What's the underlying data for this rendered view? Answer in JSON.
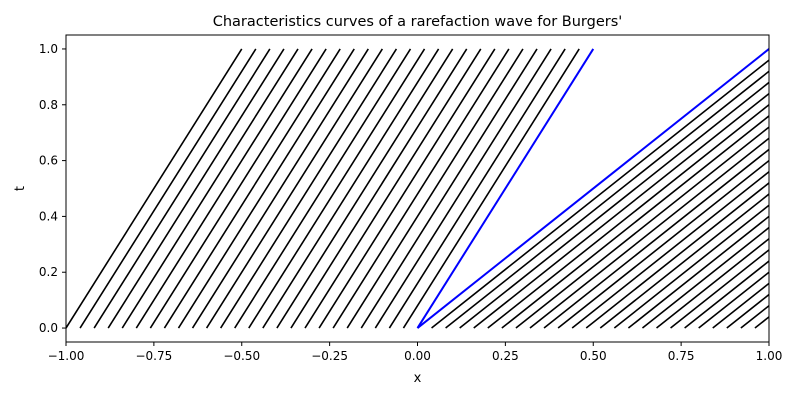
{
  "chart_data": {
    "type": "line",
    "title": "Characteristics curves of a rarefaction wave for Burgers'",
    "xlabel": "x",
    "ylabel": "t",
    "xlim": [
      -1.0,
      1.0
    ],
    "ylim": [
      -0.05,
      1.05
    ],
    "grid": false,
    "x_ticks": [
      -1.0,
      -0.75,
      -0.5,
      -0.25,
      0.0,
      0.25,
      0.5,
      0.75,
      1.0
    ],
    "x_tick_labels": [
      "−1.00",
      "−0.75",
      "−0.50",
      "−0.25",
      "0.00",
      "0.25",
      "0.50",
      "0.75",
      "1.00"
    ],
    "y_ticks": [
      0.0,
      0.2,
      0.4,
      0.6,
      0.8,
      1.0
    ],
    "y_tick_labels": [
      "0.0",
      "0.2",
      "0.4",
      "0.6",
      "0.8",
      "1.0"
    ],
    "colors": {
      "characteristics": "#000000",
      "fan_boundaries": "#0000ff"
    },
    "left_characteristics": {
      "x0_start": -1.0,
      "x0_step": 0.04,
      "count": 25,
      "speed": 0.5,
      "t_range": [
        0.0,
        1.0
      ]
    },
    "right_characteristics": {
      "x0_start": 0.04,
      "x0_step": 0.04,
      "count": 25,
      "speed": 1.0,
      "t_range": [
        0.0,
        1.0
      ]
    },
    "fan_boundary_lines": [
      {
        "x": [
          0.0,
          0.5
        ],
        "t": [
          0.0,
          1.0
        ]
      },
      {
        "x": [
          0.0,
          1.0
        ],
        "t": [
          0.0,
          1.0
        ]
      }
    ]
  }
}
